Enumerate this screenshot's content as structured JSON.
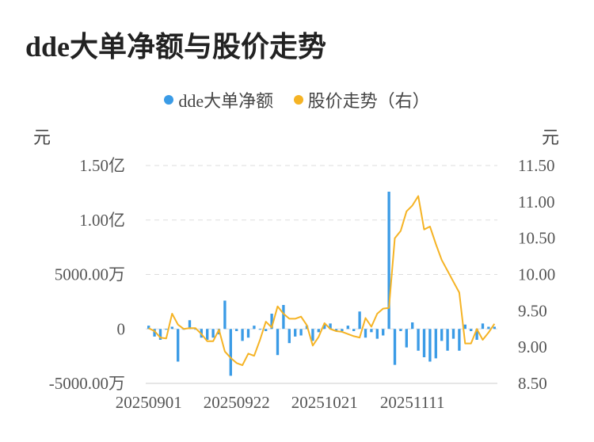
{
  "title": "dde大单净额与股价走势",
  "legend": {
    "bar_label": "dde大单净额",
    "line_label": "股价走势（右）"
  },
  "units": {
    "left": "元",
    "right": "元"
  },
  "colors": {
    "bar": "#3a9be6",
    "line": "#f5b324",
    "grid": "#dddddd"
  },
  "chart_data": {
    "type": "bar+line",
    "x_ticks": [
      "20250901",
      "20250922",
      "20251021",
      "20251111"
    ],
    "left_axis": {
      "ticks": [
        {
          "value": 150000000,
          "label": "1.50亿"
        },
        {
          "value": 100000000,
          "label": "1.00亿"
        },
        {
          "value": 50000000,
          "label": "5000.00万"
        },
        {
          "value": 0,
          "label": "0"
        },
        {
          "value": -50000000,
          "label": "-5000.00万"
        }
      ],
      "range": [
        -50000000,
        150000000
      ]
    },
    "right_axis": {
      "ticks": [
        {
          "value": 11.5,
          "label": "11.50"
        },
        {
          "value": 11.0,
          "label": "11.00"
        },
        {
          "value": 10.5,
          "label": "10.50"
        },
        {
          "value": 10.0,
          "label": "10.00"
        },
        {
          "value": 9.5,
          "label": "9.50"
        },
        {
          "value": 9.0,
          "label": "9.00"
        },
        {
          "value": 8.5,
          "label": "8.50"
        }
      ],
      "range": [
        8.5,
        11.5
      ]
    },
    "dates": [
      "20250901",
      "20250902",
      "20250903",
      "20250904",
      "20250905",
      "20250908",
      "20250909",
      "20250910",
      "20250911",
      "20250912",
      "20250915",
      "20250916",
      "20250917",
      "20250918",
      "20250919",
      "20250922",
      "20250923",
      "20250924",
      "20250925",
      "20250926",
      "20250929",
      "20250930",
      "20251009",
      "20251010",
      "20251013",
      "20251014",
      "20251015",
      "20251016",
      "20251017",
      "20251020",
      "20251021",
      "20251022",
      "20251023",
      "20251024",
      "20251027",
      "20251028",
      "20251029",
      "20251030",
      "20251031",
      "20251103",
      "20251104",
      "20251105",
      "20251106",
      "20251107",
      "20251110",
      "20251111",
      "20251112",
      "20251113",
      "20251114",
      "20251117",
      "20251118",
      "20251119",
      "20251120",
      "20251121",
      "20251124",
      "20251125",
      "20251126",
      "20251127",
      "20251128",
      "20251201"
    ],
    "dde": [
      3000000,
      -7000000,
      -10000000,
      0,
      2000000,
      -30000000,
      0,
      8000000,
      0,
      -8000000,
      -10000000,
      -8000000,
      -5000000,
      26000000,
      -43000000,
      -2000000,
      -11000000,
      -8000000,
      3000000,
      0,
      -2000000,
      14000000,
      -24000000,
      22000000,
      -13000000,
      -7000000,
      -6000000,
      3000000,
      -11000000,
      -3000000,
      4000000,
      5000000,
      -2000000,
      -2000000,
      3000000,
      -2000000,
      16000000,
      -8000000,
      -3000000,
      -9000000,
      -6000000,
      126000000,
      -33000000,
      -2000000,
      -17000000,
      6000000,
      -20000000,
      -26000000,
      -30000000,
      -27000000,
      -11000000,
      -20000000,
      -9000000,
      -20000000,
      4000000,
      -2000000,
      -10000000,
      5000000,
      2000000,
      2000000
    ],
    "price": [
      9.26,
      9.22,
      9.13,
      9.12,
      9.46,
      9.31,
      9.25,
      9.26,
      9.26,
      9.18,
      9.08,
      9.08,
      9.24,
      8.94,
      8.85,
      8.78,
      8.75,
      8.91,
      8.88,
      9.1,
      9.35,
      9.27,
      9.56,
      9.46,
      9.39,
      9.39,
      9.42,
      9.3,
      9.02,
      9.14,
      9.33,
      9.25,
      9.22,
      9.21,
      9.18,
      9.15,
      9.13,
      9.4,
      9.28,
      9.46,
      9.53,
      9.54,
      10.5,
      10.6,
      10.87,
      10.95,
      11.08,
      10.62,
      10.66,
      10.42,
      10.2,
      10.05,
      9.9,
      9.75,
      9.05,
      9.05,
      9.25,
      9.1,
      9.2,
      9.32
    ]
  }
}
